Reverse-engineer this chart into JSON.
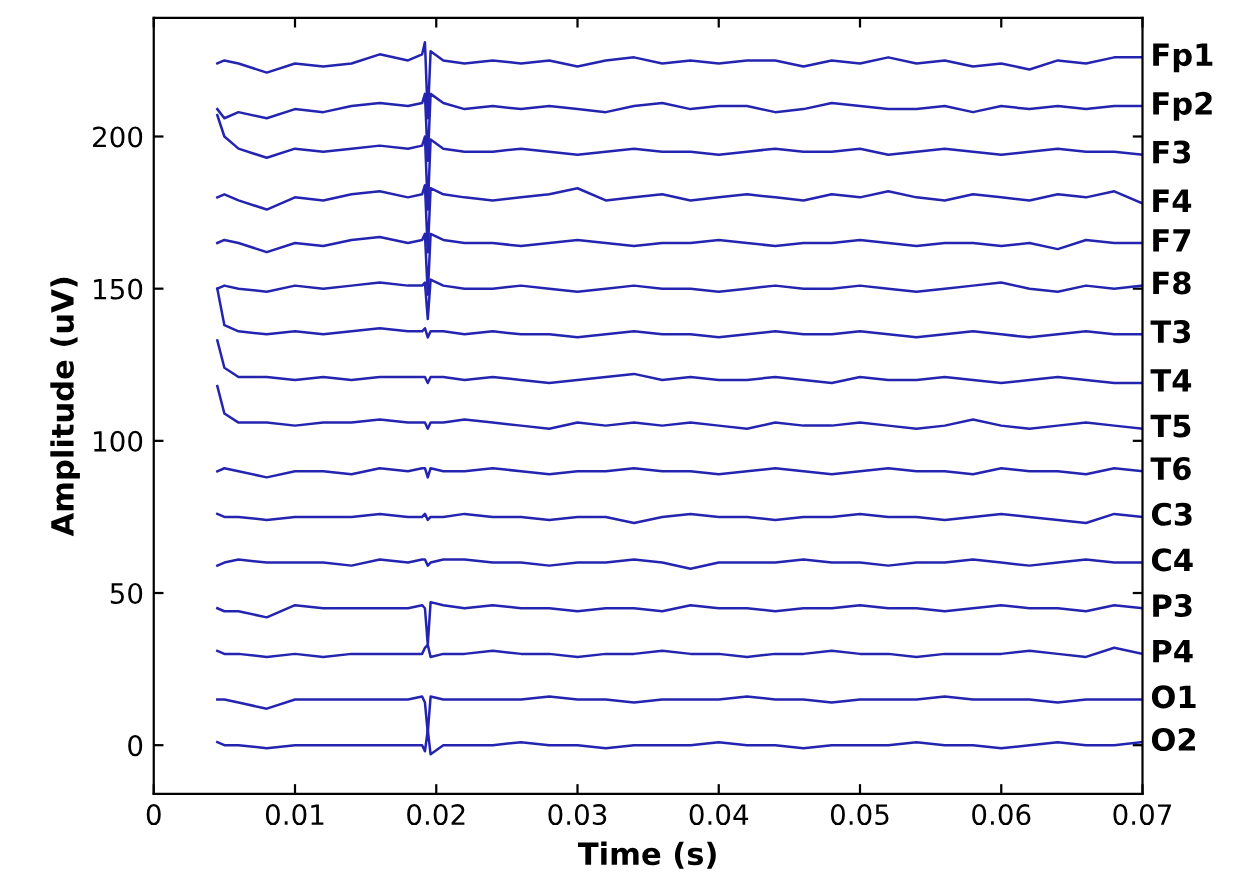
{
  "chart_data": {
    "type": "line",
    "xlabel": "Time (s)",
    "ylabel": "Amplitude (uV)",
    "xlim": [
      0,
      0.07
    ],
    "ylim": [
      -16,
      239
    ],
    "xticks": [
      0,
      0.01,
      0.02,
      0.03,
      0.04,
      0.05,
      0.06,
      0.07
    ],
    "yticks": [
      0,
      50,
      100,
      150,
      200
    ],
    "grid": false,
    "legend": false,
    "marker": "none",
    "line_style": "solid",
    "x": [
      0.0045,
      0.005,
      0.006,
      0.008,
      0.01,
      0.012,
      0.014,
      0.016,
      0.018,
      0.019,
      0.0192,
      0.0194,
      0.0196,
      0.0205,
      0.022,
      0.024,
      0.026,
      0.028,
      0.03,
      0.032,
      0.034,
      0.036,
      0.038,
      0.04,
      0.042,
      0.044,
      0.046,
      0.048,
      0.05,
      0.052,
      0.054,
      0.056,
      0.058,
      0.06,
      0.062,
      0.064,
      0.066,
      0.068,
      0.07
    ],
    "series": [
      {
        "name": "Fp1",
        "color": "#2424b0",
        "values": [
          224,
          225,
          224,
          221,
          224,
          223,
          224,
          227,
          225,
          227,
          231,
          206,
          228,
          225,
          224,
          225,
          224,
          225,
          223,
          225,
          226,
          224,
          225,
          224,
          225,
          225,
          223,
          225,
          224,
          226,
          224,
          225,
          223,
          224,
          222,
          225,
          224,
          226,
          226
        ]
      },
      {
        "name": "Fp2",
        "color": "#2424b0",
        "values": [
          209,
          206,
          208,
          206,
          209,
          208,
          210,
          211,
          210,
          211,
          214,
          192,
          214,
          211,
          209,
          210,
          209,
          210,
          209,
          208,
          210,
          211,
          209,
          210,
          210,
          208,
          209,
          211,
          210,
          209,
          209,
          210,
          208,
          210,
          209,
          210,
          209,
          210,
          210
        ]
      },
      {
        "name": "F3",
        "color": "#2424b0",
        "values": [
          207,
          200,
          196,
          193,
          196,
          195,
          196,
          197,
          196,
          197,
          200,
          176,
          199,
          196,
          195,
          195,
          196,
          195,
          194,
          195,
          196,
          195,
          195,
          194,
          195,
          196,
          195,
          195,
          196,
          194,
          195,
          196,
          195,
          194,
          195,
          196,
          195,
          195,
          194
        ]
      },
      {
        "name": "F4",
        "color": "#2424b0",
        "values": [
          180,
          181,
          179,
          176,
          180,
          179,
          181,
          182,
          180,
          181,
          184,
          162,
          183,
          181,
          180,
          179,
          180,
          181,
          183,
          179,
          180,
          181,
          179,
          180,
          181,
          180,
          179,
          181,
          180,
          182,
          180,
          179,
          181,
          180,
          179,
          181,
          180,
          182,
          178
        ]
      },
      {
        "name": "F7",
        "color": "#2424b0",
        "values": [
          165,
          166,
          165,
          162,
          165,
          164,
          166,
          167,
          165,
          166,
          168,
          148,
          168,
          166,
          165,
          165,
          164,
          165,
          166,
          165,
          164,
          165,
          165,
          166,
          165,
          164,
          165,
          165,
          166,
          165,
          164,
          165,
          165,
          164,
          165,
          163,
          166,
          165,
          165
        ]
      },
      {
        "name": "F8",
        "color": "#2424b0",
        "values": [
          150,
          151,
          150,
          149,
          151,
          150,
          151,
          152,
          151,
          151,
          152,
          140,
          153,
          151,
          150,
          150,
          151,
          150,
          149,
          150,
          151,
          150,
          150,
          149,
          150,
          151,
          150,
          150,
          151,
          150,
          149,
          150,
          151,
          152,
          150,
          149,
          151,
          150,
          151
        ]
      },
      {
        "name": "T3",
        "color": "#2424b0",
        "values": [
          150,
          138,
          136,
          135,
          136,
          135,
          136,
          137,
          136,
          136,
          137,
          134,
          136,
          136,
          135,
          136,
          135,
          135,
          134,
          135,
          136,
          135,
          135,
          134,
          135,
          136,
          135,
          135,
          136,
          135,
          134,
          135,
          136,
          135,
          134,
          135,
          136,
          135,
          135
        ]
      },
      {
        "name": "T4",
        "color": "#2424b0",
        "values": [
          133,
          124,
          121,
          121,
          120,
          121,
          120,
          121,
          121,
          121,
          121,
          119,
          121,
          121,
          120,
          121,
          120,
          119,
          120,
          121,
          122,
          120,
          121,
          120,
          120,
          121,
          120,
          119,
          121,
          120,
          120,
          121,
          120,
          119,
          120,
          121,
          120,
          119,
          119
        ]
      },
      {
        "name": "T5",
        "color": "#2424b0",
        "values": [
          118,
          109,
          106,
          106,
          105,
          106,
          106,
          107,
          106,
          106,
          106,
          104,
          106,
          106,
          107,
          106,
          105,
          104,
          106,
          105,
          106,
          105,
          106,
          105,
          104,
          106,
          105,
          105,
          106,
          105,
          104,
          105,
          107,
          105,
          104,
          105,
          106,
          105,
          104
        ]
      },
      {
        "name": "T6",
        "color": "#2424b0",
        "values": [
          90,
          91,
          90,
          88,
          90,
          90,
          89,
          91,
          90,
          91,
          91,
          88,
          91,
          90,
          90,
          91,
          90,
          89,
          90,
          90,
          91,
          90,
          90,
          89,
          90,
          91,
          90,
          89,
          90,
          91,
          90,
          90,
          89,
          91,
          90,
          90,
          89,
          91,
          90
        ]
      },
      {
        "name": "C3",
        "color": "#2424b0",
        "values": [
          76,
          75,
          75,
          74,
          75,
          75,
          75,
          76,
          75,
          75,
          76,
          74,
          75,
          75,
          76,
          75,
          75,
          74,
          75,
          75,
          73,
          75,
          76,
          75,
          75,
          74,
          75,
          75,
          76,
          75,
          75,
          74,
          75,
          76,
          75,
          74,
          73,
          76,
          75
        ]
      },
      {
        "name": "C4",
        "color": "#2424b0",
        "values": [
          59,
          60,
          61,
          60,
          60,
          60,
          59,
          61,
          60,
          61,
          61,
          59,
          60,
          61,
          61,
          60,
          60,
          59,
          60,
          60,
          61,
          60,
          58,
          60,
          60,
          60,
          61,
          60,
          60,
          59,
          60,
          60,
          61,
          60,
          59,
          60,
          61,
          60,
          60
        ]
      },
      {
        "name": "P3",
        "color": "#2424b0",
        "values": [
          45,
          44,
          44,
          42,
          46,
          45,
          45,
          45,
          45,
          46,
          45,
          33,
          47,
          46,
          45,
          46,
          45,
          45,
          44,
          45,
          45,
          44,
          46,
          45,
          45,
          44,
          45,
          45,
          46,
          45,
          45,
          44,
          45,
          46,
          45,
          45,
          44,
          46,
          45
        ]
      },
      {
        "name": "P4",
        "color": "#2424b0",
        "values": [
          31,
          30,
          30,
          29,
          30,
          29,
          30,
          30,
          30,
          30,
          32,
          33,
          29,
          30,
          30,
          31,
          30,
          30,
          29,
          30,
          30,
          31,
          30,
          30,
          29,
          30,
          30,
          31,
          30,
          30,
          29,
          30,
          30,
          30,
          31,
          30,
          29,
          32,
          30
        ]
      },
      {
        "name": "O1",
        "color": "#2424b0",
        "values": [
          15,
          15,
          14,
          12,
          15,
          15,
          15,
          15,
          15,
          16,
          14,
          4,
          16,
          15,
          15,
          15,
          15,
          16,
          15,
          15,
          14,
          15,
          15,
          15,
          16,
          15,
          15,
          14,
          15,
          15,
          15,
          16,
          15,
          15,
          15,
          14,
          15,
          15,
          15
        ]
      },
      {
        "name": "O2",
        "color": "#2424b0",
        "values": [
          1,
          0,
          0,
          -1,
          0,
          0,
          0,
          0,
          0,
          0,
          -2,
          5,
          -3,
          0,
          0,
          0,
          1,
          0,
          0,
          -1,
          0,
          0,
          0,
          1,
          0,
          0,
          -1,
          0,
          0,
          0,
          1,
          0,
          0,
          -1,
          0,
          1,
          0,
          0,
          1
        ]
      }
    ]
  }
}
